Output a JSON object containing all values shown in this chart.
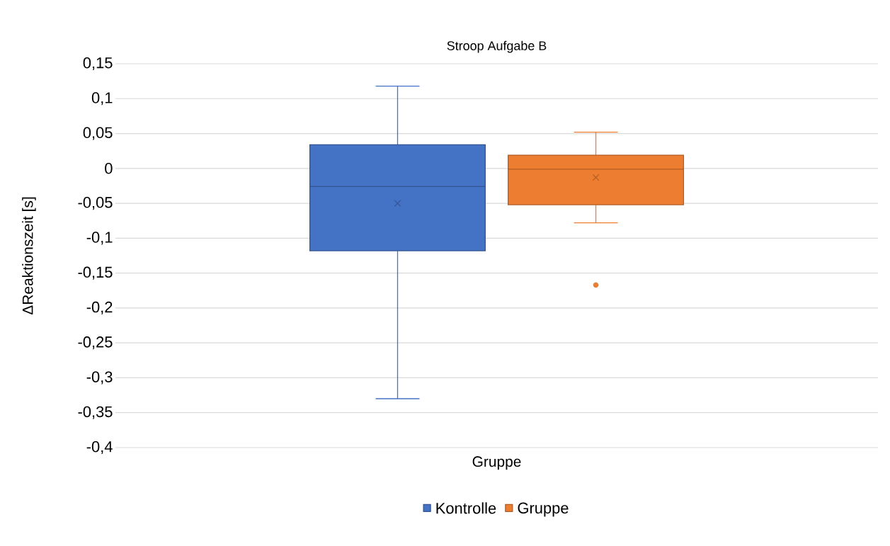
{
  "chart_data": {
    "type": "box",
    "title": "Stroop Aufgabe B",
    "xlabel": "Gruppe",
    "ylabel": "ΔReaktionszeit [s]",
    "categories": [
      null
    ],
    "series": [
      {
        "name": "Kontrolle",
        "color": "#4472c4",
        "boxes": [
          {
            "low": -0.33,
            "q1": -0.118,
            "median": -0.026,
            "q3": 0.034,
            "high": 0.118,
            "mean": -0.05
          }
        ]
      },
      {
        "name": "Gruppe",
        "color": "#ed7d31",
        "boxes": [
          {
            "low": -0.078,
            "q1": -0.052,
            "median": -0.001,
            "q3": 0.019,
            "high": 0.052,
            "mean": -0.013,
            "outliers": [
              -0.167
            ]
          }
        ]
      }
    ],
    "ylim": [
      -0.4,
      0.15
    ],
    "yticks": [
      {
        "value": -0.4,
        "label": "-0,4"
      },
      {
        "value": -0.35,
        "label": "-0,35"
      },
      {
        "value": -0.3,
        "label": "-0,3"
      },
      {
        "value": -0.25,
        "label": "-0,25"
      },
      {
        "value": -0.2,
        "label": "-0,2"
      },
      {
        "value": -0.15,
        "label": "-0,15"
      },
      {
        "value": -0.1,
        "label": "-0,1"
      },
      {
        "value": -0.05,
        "label": "-0,05"
      },
      {
        "value": 0,
        "label": "0"
      },
      {
        "value": 0.05,
        "label": "0,05"
      },
      {
        "value": 0.1,
        "label": "0,1"
      },
      {
        "value": 0.15,
        "label": "0,15"
      }
    ],
    "grid": "y",
    "legend": "bottom"
  }
}
